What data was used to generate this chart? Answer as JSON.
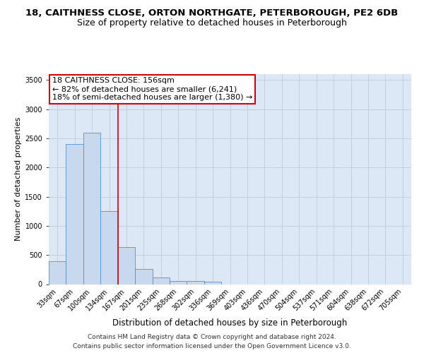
{
  "title_line1": "18, CAITHNESS CLOSE, ORTON NORTHGATE, PETERBOROUGH, PE2 6DB",
  "title_line2": "Size of property relative to detached houses in Peterborough",
  "xlabel": "Distribution of detached houses by size in Peterborough",
  "ylabel": "Number of detached properties",
  "categories": [
    "33sqm",
    "67sqm",
    "100sqm",
    "134sqm",
    "167sqm",
    "201sqm",
    "235sqm",
    "268sqm",
    "302sqm",
    "336sqm",
    "369sqm",
    "403sqm",
    "436sqm",
    "470sqm",
    "504sqm",
    "537sqm",
    "571sqm",
    "604sqm",
    "638sqm",
    "672sqm",
    "705sqm"
  ],
  "values": [
    390,
    2400,
    2600,
    1250,
    640,
    260,
    110,
    55,
    50,
    40,
    0,
    0,
    0,
    0,
    0,
    0,
    0,
    0,
    0,
    0,
    0
  ],
  "bar_color": "#c8d8ed",
  "bar_edge_color": "#5a8fc2",
  "vline_color": "#cc0000",
  "vline_pos": 4.0,
  "annotation_text": "18 CAITHNESS CLOSE: 156sqm\n← 82% of detached houses are smaller (6,241)\n18% of semi-detached houses are larger (1,380) →",
  "annotation_box_color": "#ffffff",
  "annotation_box_edge": "#cc0000",
  "ylim": [
    0,
    3600
  ],
  "yticks": [
    0,
    500,
    1000,
    1500,
    2000,
    2500,
    3000,
    3500
  ],
  "plot_bg_color": "#dce8f5",
  "footer_line1": "Contains HM Land Registry data © Crown copyright and database right 2024.",
  "footer_line2": "Contains public sector information licensed under the Open Government Licence v3.0.",
  "title_fontsize": 9.5,
  "subtitle_fontsize": 9,
  "tick_fontsize": 7,
  "ylabel_fontsize": 8,
  "xlabel_fontsize": 8.5,
  "annot_fontsize": 8
}
